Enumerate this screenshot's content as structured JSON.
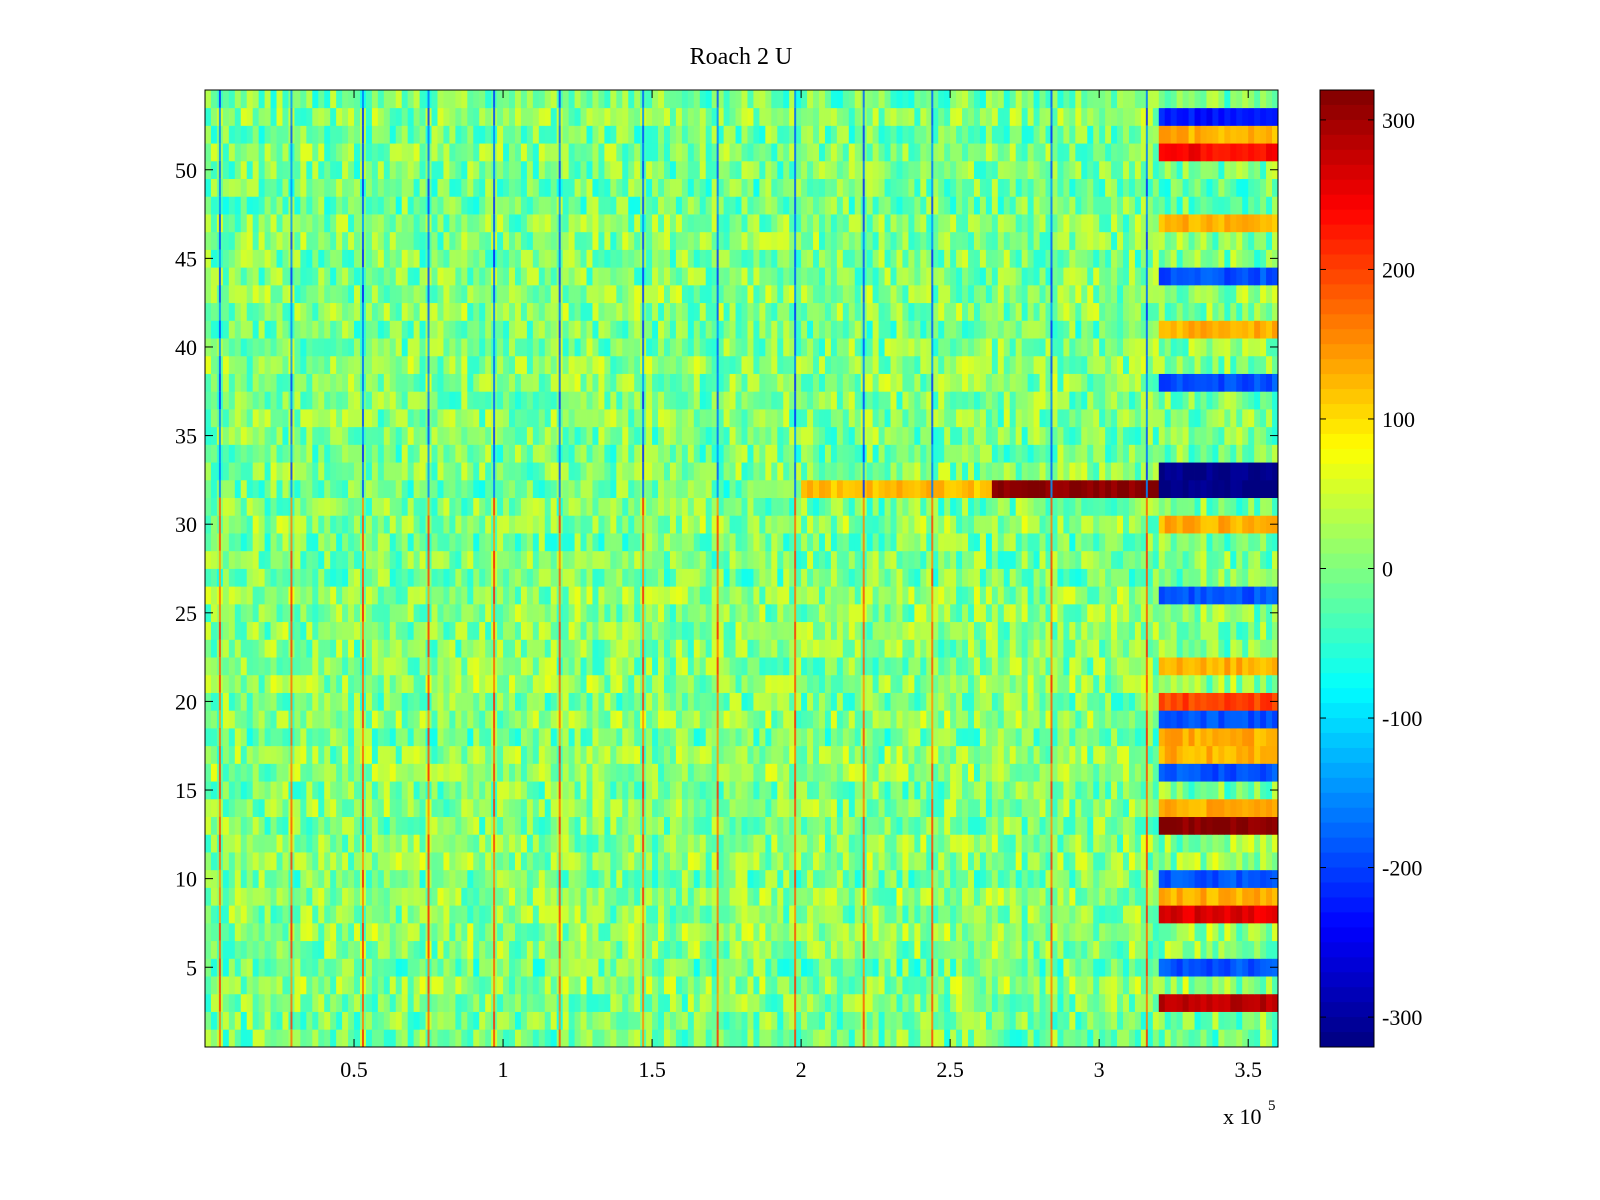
{
  "chart_data": {
    "type": "heatmap",
    "title": "Roach 2 U",
    "xlabel": "",
    "ylabel": "",
    "x_exponent_label": "x 10",
    "x_exponent": "5",
    "xlim": [
      0,
      360000
    ],
    "ylim": [
      0.5,
      54.5
    ],
    "x_ticks": [
      50000,
      100000,
      150000,
      200000,
      250000,
      300000,
      350000
    ],
    "x_tick_labels": [
      "0.5",
      "1",
      "1.5",
      "2",
      "2.5",
      "3",
      "3.5"
    ],
    "y_ticks": [
      5,
      10,
      15,
      20,
      25,
      30,
      35,
      40,
      45,
      50
    ],
    "y_tick_labels": [
      "5",
      "10",
      "15",
      "20",
      "25",
      "30",
      "35",
      "40",
      "45",
      "50"
    ],
    "colormap": "jet",
    "clim": [
      -320,
      320
    ],
    "colorbar_ticks": [
      300,
      200,
      100,
      0,
      -100,
      -200,
      -300
    ],
    "colorbar_tick_labels": [
      "300",
      "200",
      "100",
      "0",
      "-100",
      "-200",
      "-300"
    ],
    "rows": 54,
    "background_value_range": [
      -60,
      60
    ],
    "spike_columns_x": [
      5000,
      29000,
      53000,
      75000,
      97000,
      119000,
      147000,
      172000,
      198000,
      221000,
      244000,
      284000,
      316000
    ],
    "row_bands": [
      {
        "rows": [
          32
        ],
        "x_range": [
          200000,
          265000
        ],
        "value": 120
      },
      {
        "rows": [
          32
        ],
        "x_range": [
          265000,
          320000
        ],
        "value": 320
      },
      {
        "rows": [
          32,
          33
        ],
        "x_range": [
          320000,
          360000
        ],
        "value": -320
      },
      {
        "rows": [
          13
        ],
        "x_range": [
          320000,
          360000
        ],
        "value": 320
      },
      {
        "rows": [
          3
        ],
        "x_range": [
          320000,
          360000
        ],
        "value": 280
      },
      {
        "rows": [
          8
        ],
        "x_range": [
          320000,
          360000
        ],
        "value": 260
      },
      {
        "rows": [
          51
        ],
        "x_range": [
          320000,
          360000
        ],
        "value": 240
      },
      {
        "rows": [
          20
        ],
        "x_range": [
          320000,
          360000
        ],
        "value": 200
      },
      {
        "rows": [
          53
        ],
        "x_range": [
          320000,
          360000
        ],
        "value": -230
      },
      {
        "rows": [
          44,
          38,
          26,
          16,
          5,
          10,
          19
        ],
        "x_range": [
          320000,
          360000
        ],
        "value": -190
      },
      {
        "rows": [
          41,
          18,
          9,
          52,
          47,
          14,
          22,
          30,
          17
        ],
        "x_range": [
          320000,
          360000
        ],
        "value": 130
      }
    ]
  }
}
